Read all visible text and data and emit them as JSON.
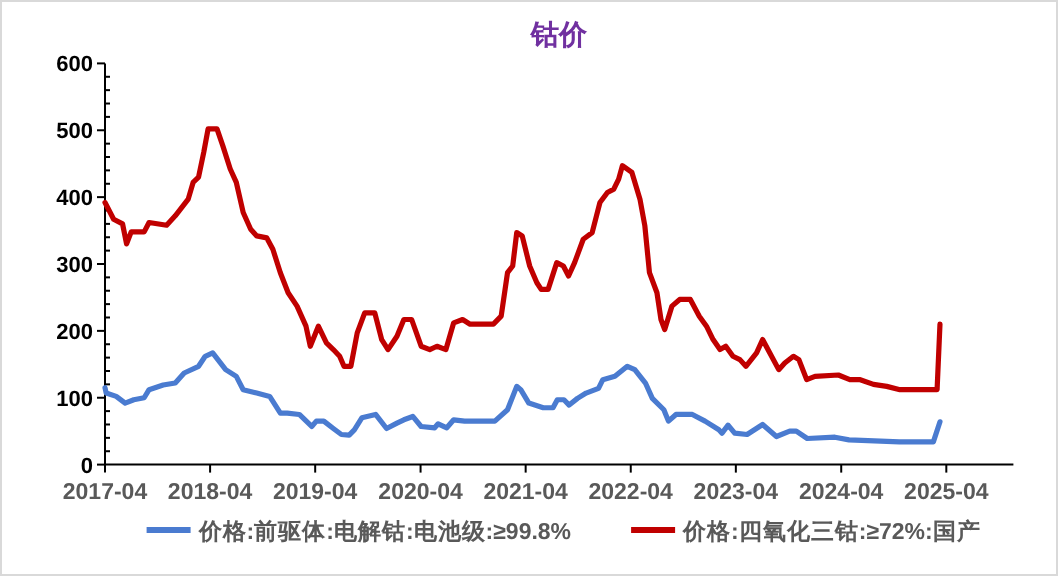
{
  "chart_data": {
    "type": "line",
    "title": "钴价",
    "xlim": [
      "2017-04-01",
      "2025-11-20"
    ],
    "xticks": [
      "2017-04",
      "2018-04",
      "2019-04",
      "2020-04",
      "2021-04",
      "2022-04",
      "2023-04",
      "2024-04",
      "2025-04"
    ],
    "ylim": [
      0,
      600
    ],
    "yticks": [
      0,
      100,
      200,
      300,
      400,
      500,
      600
    ],
    "grid": false,
    "legend": "bottom",
    "series": [
      {
        "name": "价格:前驱体:电解钴:电池级:≥99.8%",
        "color": "#4a7bd0",
        "x": [
          "2017-04-01",
          "2017-04-05",
          "2017-05-10",
          "2017-06-10",
          "2017-07-10",
          "2017-08-15",
          "2017-09-01",
          "2017-10-20",
          "2017-12-01",
          "2018-01-01",
          "2018-02-20",
          "2018-03-15",
          "2018-04-10",
          "2018-05-25",
          "2018-07-01",
          "2018-07-25",
          "2018-09-10",
          "2018-10-25",
          "2018-12-01",
          "2018-12-25",
          "2019-02-05",
          "2019-03-20",
          "2019-04-05",
          "2019-05-01",
          "2019-06-03",
          "2019-07-01",
          "2019-07-28",
          "2019-08-15",
          "2019-09-10",
          "2019-10-28",
          "2019-12-05",
          "2020-01-10",
          "2020-02-03",
          "2020-03-05",
          "2020-04-03",
          "2020-05-20",
          "2020-06-01",
          "2020-07-01",
          "2020-07-25",
          "2020-09-01",
          "2020-12-15",
          "2021-01-28",
          "2021-03-01",
          "2021-03-15",
          "2021-04-12",
          "2021-06-01",
          "2021-07-05",
          "2021-07-20",
          "2021-08-12",
          "2021-08-30",
          "2021-09-28",
          "2021-10-28",
          "2021-12-10",
          "2021-12-25",
          "2022-02-05",
          "2022-03-20",
          "2022-04-15",
          "2022-05-22",
          "2022-06-15",
          "2022-07-25",
          "2022-08-10",
          "2022-09-05",
          "2022-11-01",
          "2022-12-15",
          "2023-02-01",
          "2023-02-12",
          "2023-03-05",
          "2023-03-28",
          "2023-05-10",
          "2023-07-03",
          "2023-08-20",
          "2023-10-05",
          "2023-10-28",
          "2023-12-05",
          "2024-03-10",
          "2024-04-28",
          "2024-10-20",
          "2025-02-15",
          "2025-03-10"
        ],
        "values": [
          115,
          107,
          102,
          92,
          97,
          100,
          112,
          119,
          122,
          137,
          147,
          162,
          167,
          142,
          132,
          112,
          107,
          102,
          77,
          77,
          75,
          57,
          65,
          65,
          54,
          45,
          44,
          52,
          70,
          75,
          54,
          62,
          67,
          72,
          57,
          55,
          61,
          55,
          67,
          65,
          65,
          82,
          117,
          112,
          92,
          85,
          85,
          97,
          97,
          89,
          99,
          107,
          114,
          127,
          132,
          147,
          142,
          122,
          99,
          82,
          65,
          75,
          75,
          65,
          52,
          47,
          59,
          47,
          45,
          60,
          42,
          50,
          50,
          39,
          41,
          37,
          34,
          34,
          64
        ]
      },
      {
        "name": "价格:四氧化三钴:≥72%:国产",
        "color": "#c00000",
        "x": [
          "2017-04-01",
          "2017-05-01",
          "2017-06-01",
          "2017-06-15",
          "2017-07-01",
          "2017-08-15",
          "2017-09-01",
          "2017-11-01",
          "2017-12-01",
          "2018-01-15",
          "2018-02-01",
          "2018-02-20",
          "2018-03-10",
          "2018-03-25",
          "2018-04-25",
          "2018-05-15",
          "2018-06-10",
          "2018-07-01",
          "2018-07-25",
          "2018-08-20",
          "2018-09-10",
          "2018-10-15",
          "2018-11-05",
          "2018-12-01",
          "2018-12-28",
          "2019-01-28",
          "2019-02-28",
          "2019-03-15",
          "2019-04-12",
          "2019-05-10",
          "2019-06-03",
          "2019-06-25",
          "2019-07-10",
          "2019-08-03",
          "2019-08-25",
          "2019-09-20",
          "2019-10-25",
          "2019-11-18",
          "2019-12-10",
          "2020-01-10",
          "2020-02-03",
          "2020-03-01",
          "2020-04-03",
          "2020-05-03",
          "2020-05-28",
          "2020-06-28",
          "2020-07-25",
          "2020-08-25",
          "2020-09-20",
          "2020-12-10",
          "2021-01-06",
          "2021-01-28",
          "2021-02-15",
          "2021-03-01",
          "2021-03-20",
          "2021-04-15",
          "2021-05-10",
          "2021-05-25",
          "2021-06-18",
          "2021-07-18",
          "2021-08-10",
          "2021-08-28",
          "2021-09-18",
          "2021-10-18",
          "2021-11-18",
          "2021-12-03",
          "2021-12-15",
          "2022-01-10",
          "2022-02-01",
          "2022-02-18",
          "2022-03-03",
          "2022-04-05",
          "2022-05-03",
          "2022-05-20",
          "2022-06-05",
          "2022-07-01",
          "2022-07-15",
          "2022-07-28",
          "2022-08-22",
          "2022-09-18",
          "2022-10-25",
          "2022-11-25",
          "2022-12-20",
          "2023-01-12",
          "2023-02-05",
          "2023-02-25",
          "2023-03-22",
          "2023-04-15",
          "2023-05-06",
          "2023-06-12",
          "2023-07-03",
          "2023-07-28",
          "2023-08-28",
          "2023-09-18",
          "2023-10-18",
          "2023-11-06",
          "2023-12-03",
          "2024-01-01",
          "2024-03-22",
          "2024-05-01",
          "2024-06-06",
          "2024-07-22",
          "2024-09-06",
          "2024-10-22",
          "2025-02-15",
          "2025-02-28",
          "2025-03-10"
        ],
        "values": [
          392,
          367,
          360,
          330,
          348,
          348,
          362,
          358,
          372,
          397,
          422,
          430,
          467,
          502,
          502,
          477,
          442,
          422,
          377,
          352,
          342,
          339,
          322,
          287,
          257,
          237,
          207,
          177,
          207,
          182,
          172,
          162,
          147,
          147,
          197,
          227,
          227,
          187,
          172,
          192,
          217,
          217,
          177,
          172,
          177,
          172,
          212,
          217,
          210,
          210,
          222,
          287,
          297,
          347,
          342,
          297,
          272,
          262,
          262,
          302,
          297,
          282,
          302,
          337,
          347,
          372,
          392,
          407,
          412,
          427,
          447,
          437,
          397,
          357,
          287,
          257,
          217,
          202,
          237,
          247,
          247,
          222,
          207,
          187,
          172,
          177,
          162,
          157,
          147,
          167,
          187,
          167,
          142,
          152,
          162,
          157,
          127,
          132,
          134,
          127,
          127,
          120,
          117,
          112,
          112,
          112,
          210
        ]
      }
    ]
  }
}
